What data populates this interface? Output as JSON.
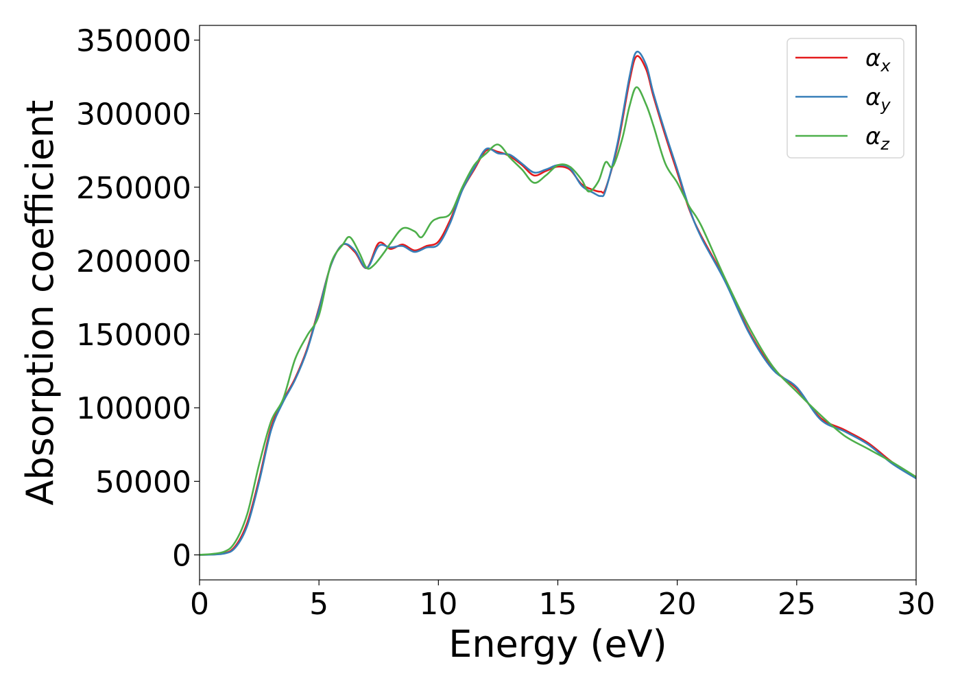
{
  "chart_data": {
    "type": "line",
    "title": "",
    "xlabel": "Energy (eV)",
    "ylabel": "Absorption coefficient",
    "xlim": [
      0,
      30
    ],
    "ylim": [
      -17000,
      360000
    ],
    "xticks": [
      0,
      5,
      10,
      15,
      20,
      25,
      30
    ],
    "yticks": [
      0,
      50000,
      100000,
      150000,
      200000,
      250000,
      300000,
      350000
    ],
    "grid": false,
    "legend_position": "top-right",
    "series": [
      {
        "name": "αx",
        "symbol": "α",
        "subscript": "x",
        "color": "#e41a1c",
        "x": [
          0,
          1,
          1.5,
          2,
          2.5,
          3,
          3.5,
          4,
          4.5,
          5,
          5.5,
          6,
          6.5,
          7,
          7.5,
          8,
          8.5,
          9,
          9.5,
          10,
          10.5,
          11,
          11.5,
          12,
          12.5,
          13,
          13.5,
          14,
          14.5,
          15,
          15.5,
          16,
          16.5,
          16.8,
          17,
          17.5,
          18,
          18.3,
          18.7,
          19,
          19.5,
          20,
          20.5,
          21,
          22,
          23,
          24,
          25,
          26,
          27,
          28,
          29,
          30
        ],
        "y": [
          0,
          1000,
          6000,
          22000,
          52000,
          87000,
          105000,
          120000,
          140000,
          168000,
          197000,
          211000,
          206000,
          195000,
          212000,
          208000,
          211000,
          207000,
          210000,
          213000,
          228000,
          248000,
          262000,
          275000,
          274000,
          271000,
          265000,
          258000,
          261000,
          264000,
          262000,
          252000,
          248000,
          247000,
          249000,
          278000,
          322000,
          339000,
          330000,
          312000,
          285000,
          260000,
          235000,
          217000,
          187000,
          152000,
          127000,
          113000,
          93000,
          85000,
          76000,
          63000,
          53000
        ]
      },
      {
        "name": "αy",
        "symbol": "α",
        "subscript": "y",
        "color": "#377eb8",
        "x": [
          0,
          1,
          1.5,
          2,
          2.5,
          3,
          3.5,
          4,
          4.5,
          5,
          5.5,
          6,
          6.5,
          7,
          7.5,
          8,
          8.5,
          9,
          9.5,
          10,
          10.5,
          11,
          11.5,
          12,
          12.5,
          13,
          13.5,
          14,
          14.5,
          15,
          15.5,
          16,
          16.5,
          16.8,
          17,
          17.5,
          18,
          18.3,
          18.7,
          19,
          19.5,
          20,
          20.5,
          21,
          22,
          23,
          24,
          25,
          26,
          27,
          28,
          29,
          30
        ],
        "y": [
          0,
          800,
          5000,
          20000,
          50000,
          85000,
          104000,
          119000,
          139000,
          167000,
          197000,
          211000,
          207000,
          195000,
          210000,
          209000,
          210000,
          206000,
          209000,
          211000,
          226000,
          248000,
          263000,
          276000,
          273000,
          272000,
          266000,
          260000,
          262000,
          265000,
          263000,
          251000,
          246000,
          244000,
          248000,
          280000,
          325000,
          342000,
          333000,
          314000,
          287000,
          262000,
          236000,
          216000,
          186000,
          151000,
          126000,
          114000,
          92000,
          84000,
          75000,
          62000,
          52000
        ]
      },
      {
        "name": "αz",
        "symbol": "α",
        "subscript": "z",
        "color": "#4daf4a",
        "x": [
          0,
          1,
          1.5,
          2,
          2.5,
          3,
          3.5,
          4,
          4.5,
          5,
          5.5,
          6,
          6.3,
          6.7,
          7,
          7.3,
          7.7,
          8,
          8.5,
          9,
          9.3,
          9.7,
          10,
          10.5,
          11,
          11.5,
          12,
          12.5,
          13,
          13.5,
          14,
          14.5,
          15,
          15.5,
          16,
          16.3,
          16.7,
          17,
          17.3,
          17.7,
          18,
          18.3,
          18.7,
          19,
          19.5,
          20,
          20.5,
          21,
          22,
          23,
          24,
          25,
          26,
          27,
          28,
          29,
          30
        ],
        "y": [
          0,
          2000,
          9000,
          28000,
          62000,
          91000,
          106000,
          133000,
          149000,
          163000,
          198000,
          211000,
          216000,
          205000,
          195000,
          197000,
          205000,
          212000,
          222000,
          220000,
          216000,
          226000,
          229000,
          232000,
          250000,
          265000,
          273000,
          279000,
          270000,
          262000,
          253000,
          258000,
          265000,
          264000,
          255000,
          247000,
          254000,
          267000,
          264000,
          283000,
          305000,
          318000,
          306000,
          292000,
          266000,
          253000,
          237000,
          224000,
          188000,
          155000,
          128000,
          111000,
          95000,
          81000,
          72000,
          63000,
          53000
        ]
      }
    ]
  }
}
